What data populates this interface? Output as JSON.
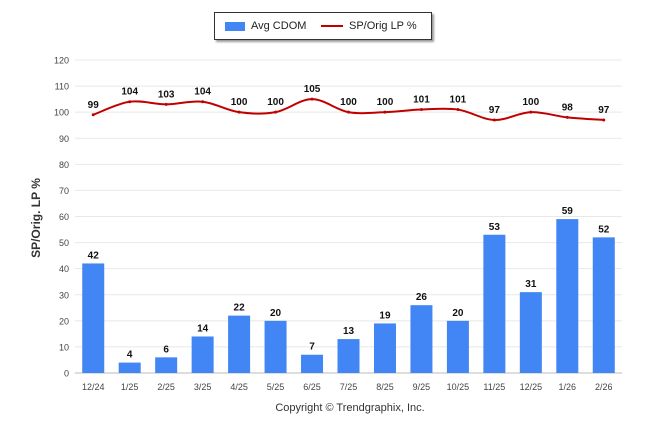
{
  "chart_data": {
    "type": "bar+line",
    "categories": [
      "12/24",
      "1/25",
      "2/25",
      "3/25",
      "4/25",
      "5/25",
      "6/25",
      "7/25",
      "8/25",
      "9/25",
      "10/25",
      "11/25",
      "12/25",
      "1/26",
      "2/26"
    ],
    "series": [
      {
        "name": "Avg CDOM",
        "type": "bar",
        "color": "#4285f4",
        "values": [
          42,
          4,
          6,
          14,
          22,
          20,
          7,
          13,
          19,
          26,
          20,
          53,
          31,
          59,
          52
        ]
      },
      {
        "name": "SP/Orig LP %",
        "type": "line",
        "color": "#c00000",
        "values": [
          99,
          104,
          103,
          104,
          100,
          100,
          105,
          100,
          100,
          101,
          101,
          97,
          100,
          98,
          97
        ]
      }
    ],
    "ylabel": "SP/Orig. LP %",
    "ylim": [
      0,
      120
    ],
    "yticks": [
      0,
      10,
      20,
      30,
      40,
      50,
      60,
      70,
      80,
      90,
      100,
      110,
      120
    ],
    "grid": true,
    "legend_position": "top-center"
  },
  "footer": {
    "copyright": "Copyright © Trendgraphix, Inc."
  }
}
